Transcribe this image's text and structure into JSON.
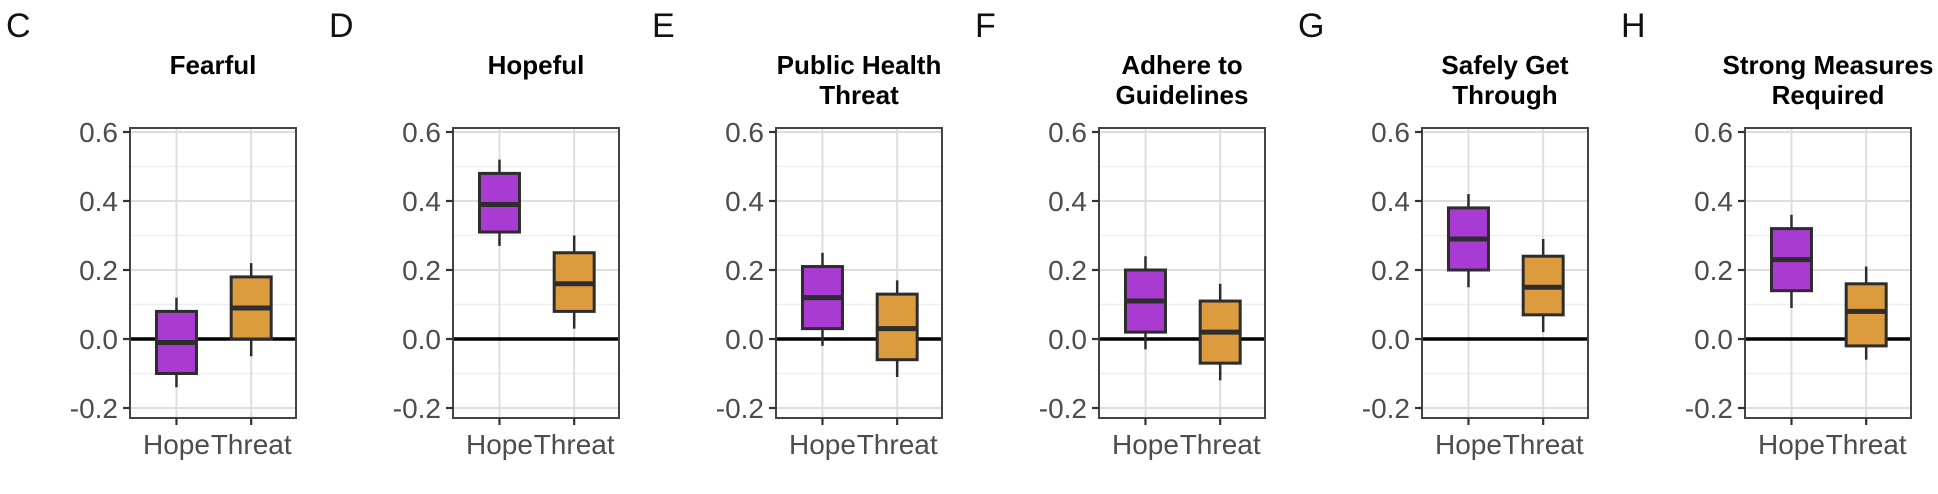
{
  "figure": {
    "background": "#FFFFFF",
    "colors": {
      "hope_fill": "#A93BD2",
      "threat_fill": "#DC9B3D",
      "box_stroke": "#2D2D2D",
      "median_stroke": "#2D2D2D",
      "whisker_stroke": "#2D2D2D",
      "grid_major": "#DEDEDE",
      "grid_minor": "#EFEFEF",
      "panel_border": "#444444",
      "zero_line": "#000000",
      "axis_tick": "#333333",
      "tick_label": "#4D4D4D",
      "title_color": "#000000",
      "letter_color": "#111111",
      "panel_background": "#FFFFFF"
    },
    "y_axis": {
      "tick_values": [
        -0.2,
        0.0,
        0.2,
        0.4,
        0.6
      ],
      "tick_labels": [
        "-0.2",
        "0.0",
        "0.2",
        "0.4",
        "0.6"
      ],
      "minor_values": [
        -0.1,
        0.1,
        0.3,
        0.5
      ],
      "range": [
        -0.229,
        0.612
      ]
    },
    "x_axis": {
      "categories": [
        "Hope",
        "Threat"
      ]
    }
  },
  "chart_data": [
    {
      "type": "boxplot",
      "panel_letter": "C",
      "title_lines": [
        "Fearful"
      ],
      "x_categories": [
        "Hope",
        "Threat"
      ],
      "ylim": [
        -0.229,
        0.612
      ],
      "y_ticks": [
        -0.2,
        0.0,
        0.2,
        0.4,
        0.6
      ],
      "zero_line": true,
      "legend": "none",
      "series": [
        {
          "name": "Hope",
          "color_key": "hope_fill",
          "whisker_low": -0.14,
          "q1": -0.1,
          "median": -0.01,
          "q3": 0.08,
          "whisker_high": 0.12
        },
        {
          "name": "Threat",
          "color_key": "threat_fill",
          "whisker_low": -0.05,
          "q1": 0.0,
          "median": 0.09,
          "q3": 0.18,
          "whisker_high": 0.22
        }
      ]
    },
    {
      "type": "boxplot",
      "panel_letter": "D",
      "title_lines": [
        "Hopeful"
      ],
      "x_categories": [
        "Hope",
        "Threat"
      ],
      "ylim": [
        -0.229,
        0.612
      ],
      "y_ticks": [
        -0.2,
        0.0,
        0.2,
        0.4,
        0.6
      ],
      "zero_line": true,
      "legend": "none",
      "series": [
        {
          "name": "Hope",
          "color_key": "hope_fill",
          "whisker_low": 0.27,
          "q1": 0.31,
          "median": 0.39,
          "q3": 0.48,
          "whisker_high": 0.52
        },
        {
          "name": "Threat",
          "color_key": "threat_fill",
          "whisker_low": 0.03,
          "q1": 0.08,
          "median": 0.16,
          "q3": 0.25,
          "whisker_high": 0.3
        }
      ]
    },
    {
      "type": "boxplot",
      "panel_letter": "E",
      "title_lines": [
        "Public Health",
        "Threat"
      ],
      "x_categories": [
        "Hope",
        "Threat"
      ],
      "ylim": [
        -0.229,
        0.612
      ],
      "y_ticks": [
        -0.2,
        0.0,
        0.2,
        0.4,
        0.6
      ],
      "zero_line": true,
      "legend": "none",
      "series": [
        {
          "name": "Hope",
          "color_key": "hope_fill",
          "whisker_low": -0.02,
          "q1": 0.03,
          "median": 0.12,
          "q3": 0.21,
          "whisker_high": 0.25
        },
        {
          "name": "Threat",
          "color_key": "threat_fill",
          "whisker_low": -0.11,
          "q1": -0.06,
          "median": 0.03,
          "q3": 0.13,
          "whisker_high": 0.17
        }
      ]
    },
    {
      "type": "boxplot",
      "panel_letter": "F",
      "title_lines": [
        "Adhere to",
        "Guidelines"
      ],
      "x_categories": [
        "Hope",
        "Threat"
      ],
      "ylim": [
        -0.229,
        0.612
      ],
      "y_ticks": [
        -0.2,
        0.0,
        0.2,
        0.4,
        0.6
      ],
      "zero_line": true,
      "legend": "none",
      "series": [
        {
          "name": "Hope",
          "color_key": "hope_fill",
          "whisker_low": -0.03,
          "q1": 0.02,
          "median": 0.11,
          "q3": 0.2,
          "whisker_high": 0.24
        },
        {
          "name": "Threat",
          "color_key": "threat_fill",
          "whisker_low": -0.12,
          "q1": -0.07,
          "median": 0.02,
          "q3": 0.11,
          "whisker_high": 0.16
        }
      ]
    },
    {
      "type": "boxplot",
      "panel_letter": "G",
      "title_lines": [
        "Safely Get",
        "Through"
      ],
      "x_categories": [
        "Hope",
        "Threat"
      ],
      "ylim": [
        -0.229,
        0.612
      ],
      "y_ticks": [
        -0.2,
        0.0,
        0.2,
        0.4,
        0.6
      ],
      "zero_line": true,
      "legend": "none",
      "series": [
        {
          "name": "Hope",
          "color_key": "hope_fill",
          "whisker_low": 0.15,
          "q1": 0.2,
          "median": 0.29,
          "q3": 0.38,
          "whisker_high": 0.42
        },
        {
          "name": "Threat",
          "color_key": "threat_fill",
          "whisker_low": 0.02,
          "q1": 0.07,
          "median": 0.15,
          "q3": 0.24,
          "whisker_high": 0.29
        }
      ]
    },
    {
      "type": "boxplot",
      "panel_letter": "H",
      "title_lines": [
        "Strong Measures",
        "Required"
      ],
      "x_categories": [
        "Hope",
        "Threat"
      ],
      "ylim": [
        -0.229,
        0.612
      ],
      "y_ticks": [
        -0.2,
        0.0,
        0.2,
        0.4,
        0.6
      ],
      "zero_line": true,
      "legend": "none",
      "series": [
        {
          "name": "Hope",
          "color_key": "hope_fill",
          "whisker_low": 0.09,
          "q1": 0.14,
          "median": 0.23,
          "q3": 0.32,
          "whisker_high": 0.36
        },
        {
          "name": "Threat",
          "color_key": "threat_fill",
          "whisker_low": -0.06,
          "q1": -0.02,
          "median": 0.08,
          "q3": 0.16,
          "whisker_high": 0.21
        }
      ]
    }
  ]
}
